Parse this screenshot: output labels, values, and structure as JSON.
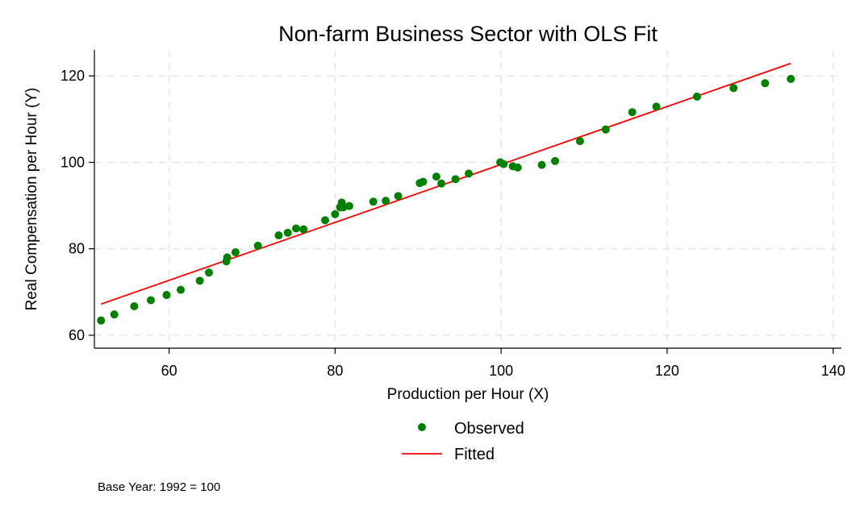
{
  "chart_data": {
    "type": "scatter",
    "title": "Non-farm Business Sector with OLS Fit",
    "xlabel": "Production per Hour (X)",
    "ylabel": "Real Compensation per Hour (Y)",
    "xlim": [
      51,
      141
    ],
    "ylim": [
      57,
      126
    ],
    "xticks": [
      60,
      80,
      100,
      120,
      140
    ],
    "yticks": [
      60,
      80,
      100,
      120
    ],
    "grid": true,
    "legend_position": "bottom",
    "note": "Base Year: 1992 = 100",
    "series": [
      {
        "name": "Observed",
        "kind": "scatter",
        "color": "#008000",
        "points": [
          [
            51.8,
            63.4
          ],
          [
            53.4,
            64.8
          ],
          [
            55.8,
            66.7
          ],
          [
            57.8,
            68.1
          ],
          [
            59.7,
            69.3
          ],
          [
            61.4,
            70.5
          ],
          [
            63.7,
            72.6
          ],
          [
            64.8,
            74.5
          ],
          [
            66.9,
            77.1
          ],
          [
            67.0,
            78.0
          ],
          [
            68.0,
            79.2
          ],
          [
            70.7,
            80.7
          ],
          [
            73.2,
            83.1
          ],
          [
            74.3,
            83.7
          ],
          [
            75.3,
            84.7
          ],
          [
            76.2,
            84.5
          ],
          [
            78.8,
            86.6
          ],
          [
            80.0,
            88.0
          ],
          [
            80.6,
            89.6
          ],
          [
            80.8,
            90.7
          ],
          [
            81.0,
            89.6
          ],
          [
            81.7,
            89.9
          ],
          [
            84.6,
            90.9
          ],
          [
            86.1,
            91.1
          ],
          [
            87.6,
            92.2
          ],
          [
            90.2,
            95.2
          ],
          [
            90.6,
            95.5
          ],
          [
            92.2,
            96.7
          ],
          [
            92.8,
            95.1
          ],
          [
            94.5,
            96.1
          ],
          [
            96.1,
            97.4
          ],
          [
            99.9,
            100.0
          ],
          [
            100.3,
            99.6
          ],
          [
            101.4,
            99.1
          ],
          [
            102.0,
            98.8
          ],
          [
            104.9,
            99.4
          ],
          [
            106.5,
            100.3
          ],
          [
            109.5,
            104.9
          ],
          [
            112.6,
            107.6
          ],
          [
            115.8,
            111.6
          ],
          [
            118.7,
            112.9
          ],
          [
            123.6,
            115.2
          ],
          [
            128.0,
            117.2
          ],
          [
            131.8,
            118.3
          ],
          [
            134.9,
            119.3
          ]
        ]
      },
      {
        "name": "Fitted",
        "kind": "line",
        "color": "#ff0000",
        "x": [
          51.8,
          134.9
        ],
        "y": [
          67.2,
          122.9
        ]
      }
    ]
  }
}
